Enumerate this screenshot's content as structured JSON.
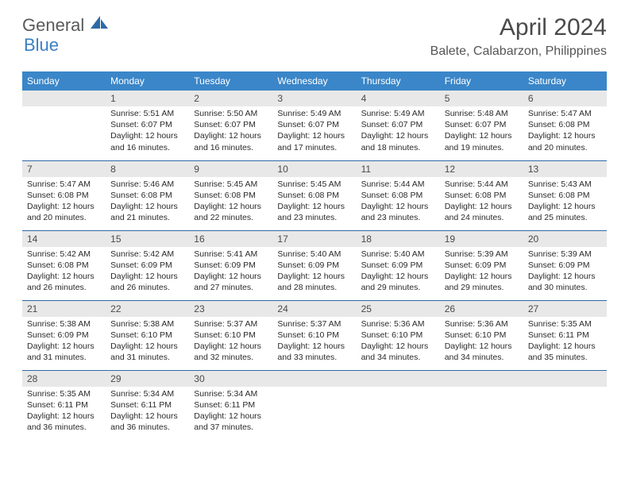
{
  "logo": {
    "part1": "General",
    "part2": "Blue"
  },
  "title": "April 2024",
  "location": "Balete, Calabarzon, Philippines",
  "colors": {
    "header_bg": "#3a86c8",
    "header_text": "#ffffff",
    "daynum_bg": "#e8e8e8",
    "border": "#2f6aa5",
    "logo_blue": "#2f6aa5"
  },
  "days_of_week": [
    "Sunday",
    "Monday",
    "Tuesday",
    "Wednesday",
    "Thursday",
    "Friday",
    "Saturday"
  ],
  "weeks": [
    [
      null,
      {
        "n": "1",
        "sunrise": "Sunrise: 5:51 AM",
        "sunset": "Sunset: 6:07 PM",
        "day1": "Daylight: 12 hours",
        "day2": "and 16 minutes."
      },
      {
        "n": "2",
        "sunrise": "Sunrise: 5:50 AM",
        "sunset": "Sunset: 6:07 PM",
        "day1": "Daylight: 12 hours",
        "day2": "and 16 minutes."
      },
      {
        "n": "3",
        "sunrise": "Sunrise: 5:49 AM",
        "sunset": "Sunset: 6:07 PM",
        "day1": "Daylight: 12 hours",
        "day2": "and 17 minutes."
      },
      {
        "n": "4",
        "sunrise": "Sunrise: 5:49 AM",
        "sunset": "Sunset: 6:07 PM",
        "day1": "Daylight: 12 hours",
        "day2": "and 18 minutes."
      },
      {
        "n": "5",
        "sunrise": "Sunrise: 5:48 AM",
        "sunset": "Sunset: 6:07 PM",
        "day1": "Daylight: 12 hours",
        "day2": "and 19 minutes."
      },
      {
        "n": "6",
        "sunrise": "Sunrise: 5:47 AM",
        "sunset": "Sunset: 6:08 PM",
        "day1": "Daylight: 12 hours",
        "day2": "and 20 minutes."
      }
    ],
    [
      {
        "n": "7",
        "sunrise": "Sunrise: 5:47 AM",
        "sunset": "Sunset: 6:08 PM",
        "day1": "Daylight: 12 hours",
        "day2": "and 20 minutes."
      },
      {
        "n": "8",
        "sunrise": "Sunrise: 5:46 AM",
        "sunset": "Sunset: 6:08 PM",
        "day1": "Daylight: 12 hours",
        "day2": "and 21 minutes."
      },
      {
        "n": "9",
        "sunrise": "Sunrise: 5:45 AM",
        "sunset": "Sunset: 6:08 PM",
        "day1": "Daylight: 12 hours",
        "day2": "and 22 minutes."
      },
      {
        "n": "10",
        "sunrise": "Sunrise: 5:45 AM",
        "sunset": "Sunset: 6:08 PM",
        "day1": "Daylight: 12 hours",
        "day2": "and 23 minutes."
      },
      {
        "n": "11",
        "sunrise": "Sunrise: 5:44 AM",
        "sunset": "Sunset: 6:08 PM",
        "day1": "Daylight: 12 hours",
        "day2": "and 23 minutes."
      },
      {
        "n": "12",
        "sunrise": "Sunrise: 5:44 AM",
        "sunset": "Sunset: 6:08 PM",
        "day1": "Daylight: 12 hours",
        "day2": "and 24 minutes."
      },
      {
        "n": "13",
        "sunrise": "Sunrise: 5:43 AM",
        "sunset": "Sunset: 6:08 PM",
        "day1": "Daylight: 12 hours",
        "day2": "and 25 minutes."
      }
    ],
    [
      {
        "n": "14",
        "sunrise": "Sunrise: 5:42 AM",
        "sunset": "Sunset: 6:08 PM",
        "day1": "Daylight: 12 hours",
        "day2": "and 26 minutes."
      },
      {
        "n": "15",
        "sunrise": "Sunrise: 5:42 AM",
        "sunset": "Sunset: 6:09 PM",
        "day1": "Daylight: 12 hours",
        "day2": "and 26 minutes."
      },
      {
        "n": "16",
        "sunrise": "Sunrise: 5:41 AM",
        "sunset": "Sunset: 6:09 PM",
        "day1": "Daylight: 12 hours",
        "day2": "and 27 minutes."
      },
      {
        "n": "17",
        "sunrise": "Sunrise: 5:40 AM",
        "sunset": "Sunset: 6:09 PM",
        "day1": "Daylight: 12 hours",
        "day2": "and 28 minutes."
      },
      {
        "n": "18",
        "sunrise": "Sunrise: 5:40 AM",
        "sunset": "Sunset: 6:09 PM",
        "day1": "Daylight: 12 hours",
        "day2": "and 29 minutes."
      },
      {
        "n": "19",
        "sunrise": "Sunrise: 5:39 AM",
        "sunset": "Sunset: 6:09 PM",
        "day1": "Daylight: 12 hours",
        "day2": "and 29 minutes."
      },
      {
        "n": "20",
        "sunrise": "Sunrise: 5:39 AM",
        "sunset": "Sunset: 6:09 PM",
        "day1": "Daylight: 12 hours",
        "day2": "and 30 minutes."
      }
    ],
    [
      {
        "n": "21",
        "sunrise": "Sunrise: 5:38 AM",
        "sunset": "Sunset: 6:09 PM",
        "day1": "Daylight: 12 hours",
        "day2": "and 31 minutes."
      },
      {
        "n": "22",
        "sunrise": "Sunrise: 5:38 AM",
        "sunset": "Sunset: 6:10 PM",
        "day1": "Daylight: 12 hours",
        "day2": "and 31 minutes."
      },
      {
        "n": "23",
        "sunrise": "Sunrise: 5:37 AM",
        "sunset": "Sunset: 6:10 PM",
        "day1": "Daylight: 12 hours",
        "day2": "and 32 minutes."
      },
      {
        "n": "24",
        "sunrise": "Sunrise: 5:37 AM",
        "sunset": "Sunset: 6:10 PM",
        "day1": "Daylight: 12 hours",
        "day2": "and 33 minutes."
      },
      {
        "n": "25",
        "sunrise": "Sunrise: 5:36 AM",
        "sunset": "Sunset: 6:10 PM",
        "day1": "Daylight: 12 hours",
        "day2": "and 34 minutes."
      },
      {
        "n": "26",
        "sunrise": "Sunrise: 5:36 AM",
        "sunset": "Sunset: 6:10 PM",
        "day1": "Daylight: 12 hours",
        "day2": "and 34 minutes."
      },
      {
        "n": "27",
        "sunrise": "Sunrise: 5:35 AM",
        "sunset": "Sunset: 6:11 PM",
        "day1": "Daylight: 12 hours",
        "day2": "and 35 minutes."
      }
    ],
    [
      {
        "n": "28",
        "sunrise": "Sunrise: 5:35 AM",
        "sunset": "Sunset: 6:11 PM",
        "day1": "Daylight: 12 hours",
        "day2": "and 36 minutes."
      },
      {
        "n": "29",
        "sunrise": "Sunrise: 5:34 AM",
        "sunset": "Sunset: 6:11 PM",
        "day1": "Daylight: 12 hours",
        "day2": "and 36 minutes."
      },
      {
        "n": "30",
        "sunrise": "Sunrise: 5:34 AM",
        "sunset": "Sunset: 6:11 PM",
        "day1": "Daylight: 12 hours",
        "day2": "and 37 minutes."
      },
      null,
      null,
      null,
      null
    ]
  ]
}
